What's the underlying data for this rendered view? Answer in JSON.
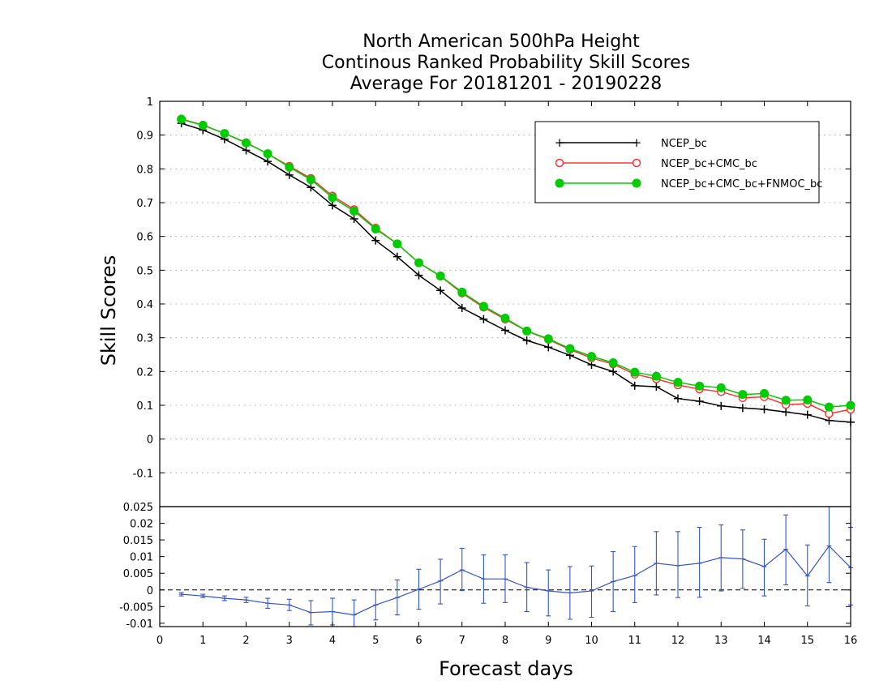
{
  "chart_data": [
    {
      "type": "line",
      "title": [
        "North American 500hPa Height",
        "Continous Ranked Probability Skill Scores",
        "Average For 20181201 - 20190228"
      ],
      "xlabel": "Forecast days",
      "ylabel": "Skill Scores",
      "xlim": [
        0,
        16
      ],
      "ylim": [
        -0.2,
        1.0
      ],
      "yticks": [
        "-0.1",
        "0",
        "0.1",
        "0.2",
        "0.3",
        "0.4",
        "0.5",
        "0.6",
        "0.7",
        "0.8",
        "0.9",
        "1"
      ],
      "grid": true,
      "legend_position": "top-right",
      "x": [
        0.5,
        1,
        1.5,
        2,
        2.5,
        3,
        3.5,
        4,
        4.5,
        5,
        5.5,
        6,
        6.5,
        7,
        7.5,
        8,
        8.5,
        9,
        9.5,
        10,
        10.5,
        11,
        11.5,
        12,
        12.5,
        13,
        13.5,
        14,
        14.5,
        15,
        15.5,
        16
      ],
      "series": [
        {
          "name": "NCEP_bc",
          "color": "#000000",
          "marker": "plus",
          "values": [
            0.935,
            0.915,
            0.888,
            0.855,
            0.822,
            0.782,
            0.745,
            0.692,
            0.652,
            0.588,
            0.54,
            0.485,
            0.44,
            0.388,
            0.355,
            0.322,
            0.292,
            0.272,
            0.248,
            0.22,
            0.2,
            0.158,
            0.155,
            0.12,
            0.112,
            0.098,
            0.092,
            0.088,
            0.08,
            0.072,
            0.055,
            0.05
          ]
        },
        {
          "name": "NCEP_bc+CMC_bc",
          "color": "#ff3333",
          "marker": "open-circle",
          "values": [
            0.948,
            0.93,
            0.905,
            0.878,
            0.845,
            0.808,
            0.772,
            0.72,
            0.68,
            0.625,
            0.578,
            0.522,
            0.482,
            0.432,
            0.39,
            0.355,
            0.32,
            0.295,
            0.265,
            0.24,
            0.222,
            0.192,
            0.178,
            0.16,
            0.148,
            0.14,
            0.122,
            0.125,
            0.102,
            0.105,
            0.075,
            0.088
          ]
        },
        {
          "name": "NCEP_bc+CMC_bc+FNMOC_bc",
          "color": "#00cc00",
          "marker": "filled-circle",
          "values": [
            0.947,
            0.929,
            0.905,
            0.877,
            0.845,
            0.805,
            0.768,
            0.715,
            0.675,
            0.622,
            0.578,
            0.522,
            0.483,
            0.435,
            0.393,
            0.358,
            0.32,
            0.297,
            0.268,
            0.245,
            0.226,
            0.198,
            0.186,
            0.168,
            0.157,
            0.152,
            0.132,
            0.135,
            0.115,
            0.116,
            0.095,
            0.1
          ]
        }
      ]
    },
    {
      "type": "line",
      "xlim": [
        0,
        16
      ],
      "ylim": [
        -0.011,
        0.025
      ],
      "yticks": [
        "-0.01",
        "-0.005",
        "0",
        "0.005",
        "0.01",
        "0.015",
        "0.02",
        "0.025"
      ],
      "xticks": [
        "0",
        "1",
        "2",
        "3",
        "4",
        "5",
        "6",
        "7",
        "8",
        "9",
        "10",
        "11",
        "12",
        "13",
        "14",
        "15",
        "16"
      ],
      "reference_line": 0,
      "x": [
        0.5,
        1,
        1.5,
        2,
        2.5,
        3,
        3.5,
        4,
        4.5,
        5,
        5.5,
        6,
        6.5,
        7,
        7.5,
        8,
        8.5,
        9,
        9.5,
        10,
        10.5,
        11,
        11.5,
        12,
        12.5,
        13,
        13.5,
        14,
        14.5,
        15,
        15.5,
        16
      ],
      "series": [
        {
          "color": "#3355cc",
          "marker": "error-bar",
          "values": [
            -0.0013,
            -0.0018,
            -0.0025,
            -0.003,
            -0.004,
            -0.0045,
            -0.0068,
            -0.0065,
            -0.0075,
            -0.0045,
            -0.0023,
            0.0002,
            0.0027,
            0.006,
            0.0033,
            0.0033,
            0.0008,
            -0.0003,
            -0.0009,
            -0.0003,
            0.0025,
            0.0043,
            0.008,
            0.0073,
            0.008,
            0.0097,
            0.0093,
            0.007,
            0.0122,
            0.0042,
            0.0132,
            0.0067
          ],
          "error_low": [
            -0.0018,
            -0.0023,
            -0.0032,
            -0.0038,
            -0.0055,
            -0.0062,
            -0.0105,
            -0.0105,
            -0.012,
            -0.009,
            -0.0075,
            -0.0058,
            -0.0042,
            -0.0002,
            -0.004,
            -0.0038,
            -0.0065,
            -0.0078,
            -0.0088,
            -0.0082,
            -0.0065,
            -0.0038,
            -0.0015,
            -0.0023,
            -0.0022,
            -0.0003,
            0.0005,
            -0.0018,
            0.0015,
            -0.0048,
            0.0022,
            -0.0045
          ],
          "error_high": [
            -0.0008,
            -0.0013,
            -0.0018,
            -0.0022,
            -0.0025,
            -0.0028,
            -0.0032,
            -0.0025,
            -0.003,
            0.0,
            0.003,
            0.0062,
            0.0092,
            0.0125,
            0.0105,
            0.0105,
            0.0082,
            0.006,
            0.007,
            0.0072,
            0.0115,
            0.013,
            0.0175,
            0.0175,
            0.0188,
            0.0195,
            0.018,
            0.0152,
            0.0225,
            0.0135,
            0.0255,
            0.0188
          ]
        }
      ]
    }
  ]
}
